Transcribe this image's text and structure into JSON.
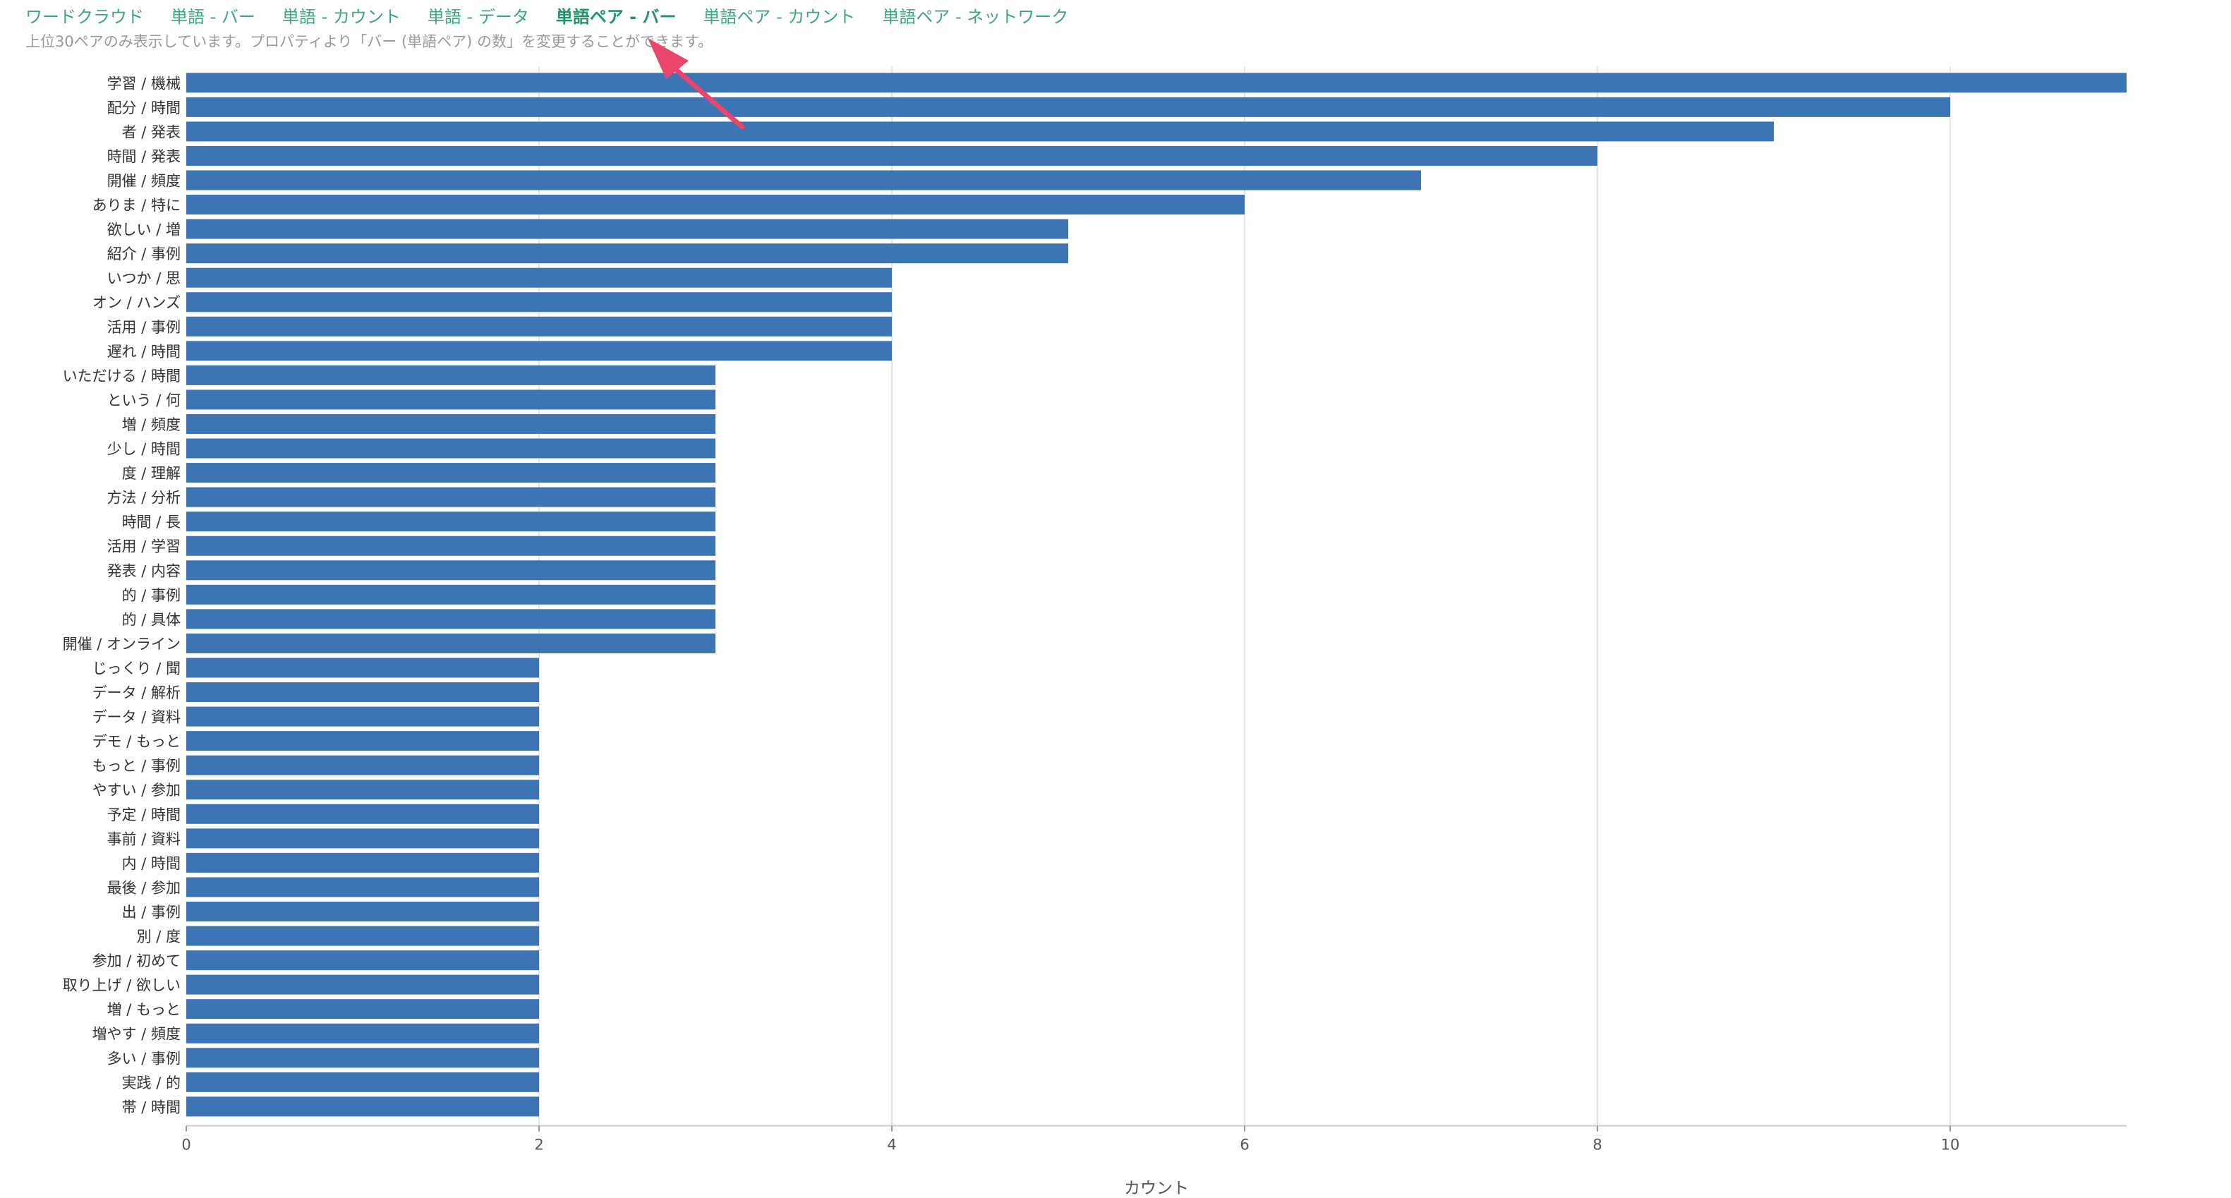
{
  "tabs": [
    {
      "label": "ワードクラウド",
      "active": false
    },
    {
      "label": "単語 - バー",
      "active": false
    },
    {
      "label": "単語 - カウント",
      "active": false
    },
    {
      "label": "単語 - データ",
      "active": false
    },
    {
      "label": "単語ペア - バー",
      "active": true
    },
    {
      "label": "単語ペア - カウント",
      "active": false
    },
    {
      "label": "単語ペア - ネットワーク",
      "active": false
    }
  ],
  "note": "上位30ペアのみ表示しています。プロパティより「バー (単語ペア) の数」を変更することができます。",
  "colors": {
    "bar": "#3c74b4",
    "tab": "#3aa87a",
    "arrow": "#e8466b",
    "grid": "#e6e6e6"
  },
  "chart_data": {
    "type": "bar",
    "orientation": "horizontal",
    "title": "",
    "xlabel": "カウント",
    "ylabel": "",
    "xlim": [
      0,
      11
    ],
    "xticks": [
      0,
      2,
      4,
      6,
      8,
      10
    ],
    "grid": true,
    "categories": [
      "学習 / 機械",
      "配分 / 時間",
      "者 / 発表",
      "時間 / 発表",
      "開催 / 頻度",
      "ありま / 特に",
      "欲しい / 増",
      "紹介 / 事例",
      "いつか / 思",
      "オン / ハンズ",
      "活用 / 事例",
      "遅れ / 時間",
      "いただける / 時間",
      "という / 何",
      "増 / 頻度",
      "少し / 時間",
      "度 / 理解",
      "方法 / 分析",
      "時間 / 長",
      "活用 / 学習",
      "発表 / 内容",
      "的 / 事例",
      "的 / 具体",
      "開催 / オンライン",
      "じっくり / 聞",
      "データ / 解析",
      "データ / 資料",
      "デモ / もっと",
      "もっと / 事例",
      "やすい / 参加",
      "予定 / 時間",
      "事前 / 資料",
      "内 / 時間",
      "最後 / 参加",
      "出 / 事例",
      "別 / 度",
      "参加 / 初めて",
      "取り上げ / 欲しい",
      "増 / もっと",
      "増やす / 頻度",
      "多い / 事例",
      "実践 / 的",
      "帯 / 時間"
    ],
    "values": [
      11,
      10,
      9,
      8,
      7,
      6,
      5,
      5,
      4,
      4,
      4,
      4,
      3,
      3,
      3,
      3,
      3,
      3,
      3,
      3,
      3,
      3,
      3,
      3,
      2,
      2,
      2,
      2,
      2,
      2,
      2,
      2,
      2,
      2,
      2,
      2,
      2,
      2,
      2,
      2,
      2,
      2,
      2
    ]
  }
}
